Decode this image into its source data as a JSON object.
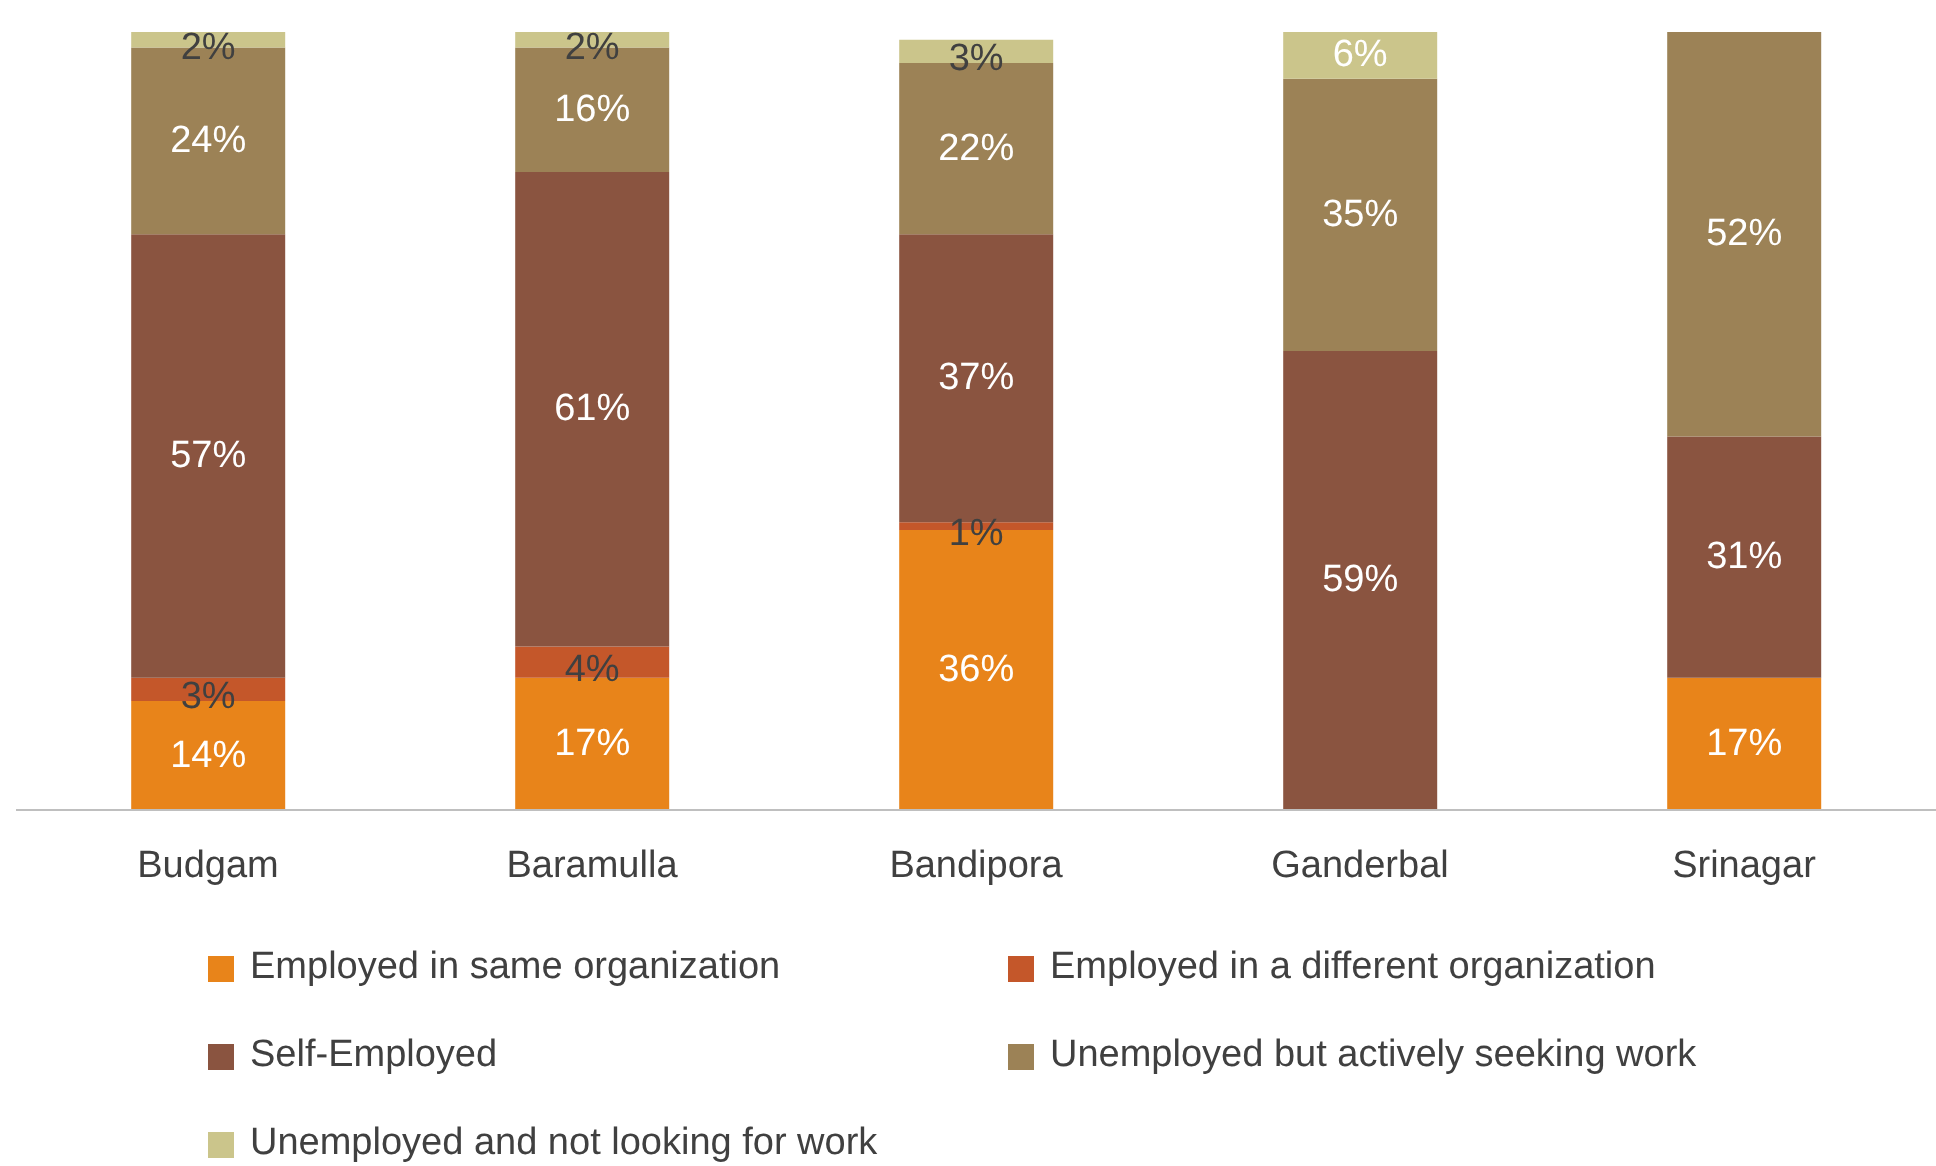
{
  "chart_data": {
    "type": "bar",
    "stacked": true,
    "categories": [
      "Budgam",
      "Baramulla",
      "Bandipora",
      "Ganderbal",
      "Srinagar"
    ],
    "series": [
      {
        "name": "Employed in same organization",
        "color": "#e8841a",
        "values": [
          14,
          17,
          36,
          null,
          17
        ],
        "value_labels": [
          "14%",
          "17%",
          "36%",
          null,
          "17%"
        ]
      },
      {
        "name": "Employed in a different organization",
        "color": "#c4572a",
        "values": [
          3,
          4,
          1,
          null,
          null
        ],
        "value_labels": [
          "3%",
          "4%",
          "1%",
          null,
          null
        ]
      },
      {
        "name": "Self-Employed",
        "color": "#8a5440",
        "values": [
          57,
          61,
          37,
          59,
          31
        ],
        "value_labels": [
          "57%",
          "61%",
          "37%",
          "59%",
          "31%"
        ]
      },
      {
        "name": "Unemployed but actively seeking work",
        "color": "#9c8256",
        "values": [
          24,
          16,
          22,
          35,
          52
        ],
        "value_labels": [
          "24%",
          "16%",
          "22%",
          "35%",
          "52%"
        ]
      },
      {
        "name": "Unemployed and not looking for work",
        "color": "#cbc58b",
        "values": [
          2,
          2,
          3,
          6,
          null
        ],
        "value_labels": [
          "2%",
          "2%",
          "3%",
          "6%",
          null
        ]
      }
    ],
    "legend": "bottom",
    "grid": false
  }
}
